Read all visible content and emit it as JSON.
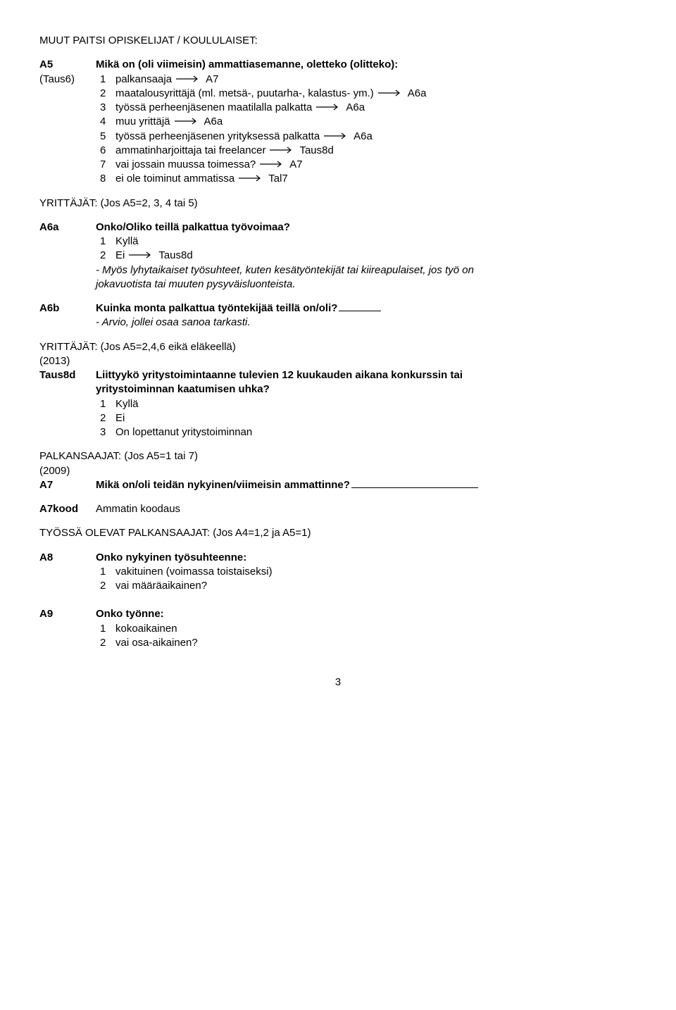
{
  "header1": "MUUT PAITSI OPISKELIJAT / KOULULAISET:",
  "a5": {
    "code": "A5",
    "sub": "(Taus6)",
    "question": "Mikä on (oli viimeisin) ammattiasemanne, oletteko (olitteko):",
    "opts": [
      {
        "n": "1",
        "t": "palkansaaja",
        "arrow": true,
        "target": "A7"
      },
      {
        "n": "2",
        "t": "maatalousyrittäjä  (ml. metsä-, puutarha-, kalastus- ym.)",
        "arrow": true,
        "target": "A6a"
      },
      {
        "n": "3",
        "t": "työssä perheenjäsenen maatilalla palkatta",
        "arrow": true,
        "target": "A6a"
      },
      {
        "n": "4",
        "t": "muu yrittäjä",
        "arrow": true,
        "target": "A6a"
      },
      {
        "n": "5",
        "t": "työssä perheenjäsenen yrityksessä palkatta",
        "arrow": true,
        "target": "A6a"
      },
      {
        "n": "6",
        "t": "ammatinharjoittaja tai freelancer",
        "arrow": true,
        "target": "Taus8d"
      },
      {
        "n": "7",
        "t": "vai jossain muussa toimessa?",
        "arrow": true,
        "target": "A7"
      },
      {
        "n": "8",
        "t": "ei ole toiminut ammatissa",
        "arrow": true,
        "target": "Tal7"
      }
    ]
  },
  "yrit1": "YRITTÄJÄT: (Jos A5=2, 3, 4 tai 5)",
  "a6a": {
    "code": "A6a",
    "question": "Onko/Oliko teillä palkattua työvoimaa?",
    "opt1n": "1",
    "opt1t": "Kyllä",
    "opt2n": "2",
    "opt2t": "Ei",
    "opt2target": "Taus8d",
    "note1": "- Myös lyhytaikaiset työsuhteet, kuten kesätyöntekijät tai kiireapulaiset, jos työ on",
    "note2": "jokavuotista tai muuten pysyväisluonteista."
  },
  "a6b": {
    "code": "A6b",
    "question": "Kuinka monta palkattua työntekijää teillä on/oli?",
    "note": "- Arvio, jollei osaa sanoa tarkasti."
  },
  "yrit2_l1": "YRITTÄJÄT: (Jos A5=2,4,6 eikä eläkeellä)",
  "yrit2_l2": "(2013)",
  "taus8d": {
    "code": "Taus8d",
    "q1": "Liittyykö yritystoimintaanne tulevien 12 kuukauden aikana konkurssin tai",
    "q2": "yritystoiminnan kaatumisen uhka?",
    "o1n": "1",
    "o1t": "Kyllä",
    "o2n": "2",
    "o2t": "Ei",
    "o3n": "3",
    "o3t": "On lopettanut yritystoiminnan"
  },
  "palk_l1": "PALKANSAAJAT: (Jos A5=1 tai 7)",
  "palk_l2": "(2009)",
  "a7": {
    "code": "A7",
    "question": "Mikä on/oli teidän nykyinen/viimeisin ammattinne?"
  },
  "a7kood": {
    "code": "A7kood",
    "text": "Ammatin koodaus"
  },
  "tyossa": "TYÖSSÄ OLEVAT PALKANSAAJAT: (Jos A4=1,2 ja A5=1)",
  "a8": {
    "code": "A8",
    "question": "Onko nykyinen työsuhteenne:",
    "o1n": "1",
    "o1t": "vakituinen (voimassa toistaiseksi)",
    "o2n": "2",
    "o2t": "vai määräaikainen?"
  },
  "a9": {
    "code": "A9",
    "question": "Onko työnne:",
    "o1n": "1",
    "o1t": "kokoaikainen",
    "o2n": "2",
    "o2t": "vai osa-aikainen?"
  },
  "pageNumber": "3",
  "arrow": {
    "stroke": "#000",
    "width": 36,
    "height": 10
  }
}
